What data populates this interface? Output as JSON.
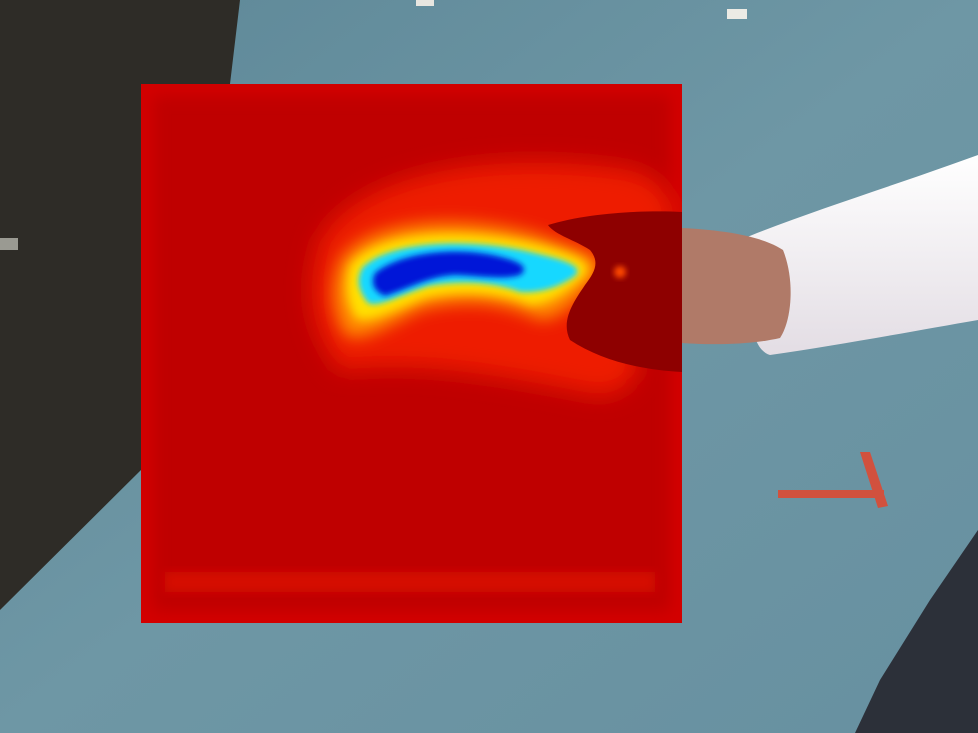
{
  "scene": {
    "floor_color": "#6a93a1",
    "carpet_color": "#2e2c27",
    "arm_sleeve_color": "#f2eef0",
    "hand_color": "#b07a68",
    "floor_mark_color": "#d1513e",
    "pants_color": "#2c3039"
  },
  "heatmap": {
    "colormap": "jet",
    "background_color": "#bf0000",
    "hot_color": "#0018d8",
    "occluder_color": "#8e0000"
  }
}
